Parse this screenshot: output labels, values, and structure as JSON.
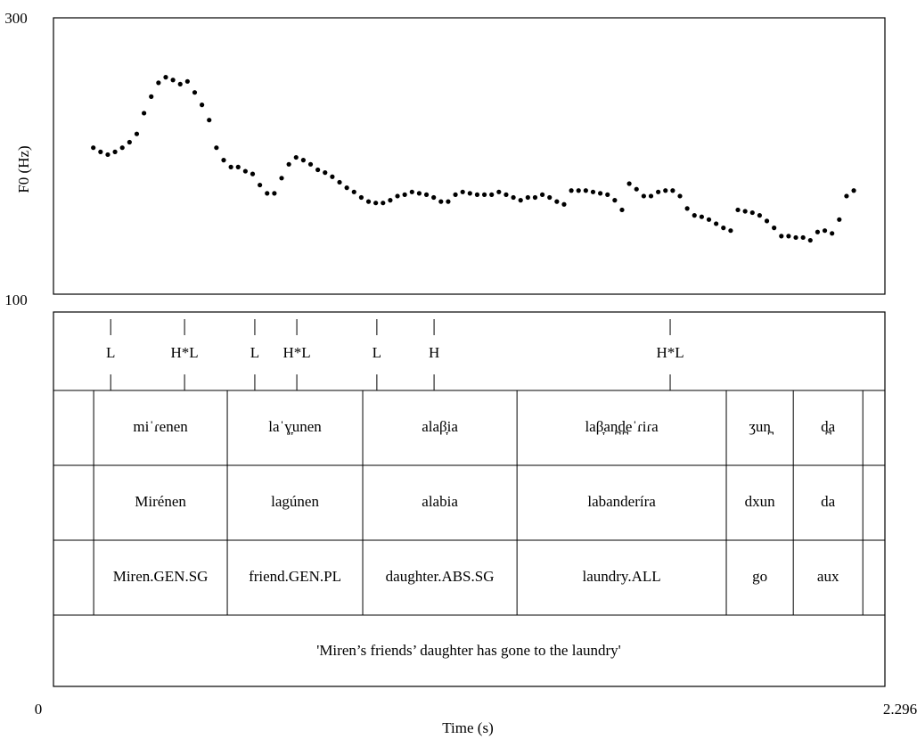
{
  "chart_data": {
    "type": "scatter",
    "xlabel": "Time (s)",
    "ylabel": "F0 (Hz)",
    "xlim": [
      0,
      2.296
    ],
    "ylim": [
      100,
      300
    ],
    "xticks": [
      0,
      2.296
    ],
    "yticks": [
      100,
      300
    ],
    "color": "#000000",
    "x": [
      0.11,
      0.13,
      0.15,
      0.17,
      0.19,
      0.21,
      0.23,
      0.25,
      0.27,
      0.29,
      0.31,
      0.33,
      0.35,
      0.37,
      0.39,
      0.41,
      0.43,
      0.45,
      0.47,
      0.49,
      0.51,
      0.53,
      0.55,
      0.57,
      0.59,
      0.61,
      0.63,
      0.65,
      0.67,
      0.69,
      0.71,
      0.73,
      0.75,
      0.77,
      0.79,
      0.81,
      0.83,
      0.85,
      0.87,
      0.89,
      0.91,
      0.93,
      0.95,
      0.97,
      0.99,
      1.01,
      1.03,
      1.05,
      1.07,
      1.09,
      1.11,
      1.13,
      1.15,
      1.17,
      1.19,
      1.21,
      1.23,
      1.25,
      1.27,
      1.29,
      1.31,
      1.33,
      1.35,
      1.37,
      1.39,
      1.41,
      1.43,
      1.45,
      1.47,
      1.49,
      1.51,
      1.53,
      1.55,
      1.57,
      1.59,
      1.61,
      1.63,
      1.65,
      1.67,
      1.69,
      1.71,
      1.73,
      1.75,
      1.77,
      1.79,
      1.81,
      1.83,
      1.85,
      1.87,
      1.89,
      1.91,
      1.93,
      1.95,
      1.97,
      1.99,
      2.01,
      2.03,
      2.05,
      2.07,
      2.09,
      2.11,
      2.13,
      2.15,
      2.17,
      2.19,
      2.21
    ],
    "values": [
      206,
      203,
      201,
      203,
      206,
      210,
      216,
      231,
      243,
      253,
      257,
      255,
      252,
      254,
      246,
      237,
      226,
      206,
      197,
      192,
      192,
      189,
      187,
      179,
      173,
      173,
      184,
      194,
      199,
      197,
      194,
      190,
      188,
      185,
      181,
      177,
      174,
      170,
      167,
      166,
      166,
      168,
      171,
      172,
      174,
      173,
      172,
      170,
      167,
      167,
      172,
      174,
      173,
      172,
      172,
      172,
      174,
      172,
      170,
      168,
      170,
      170,
      172,
      170,
      167,
      165,
      175,
      175,
      175,
      174,
      173,
      172,
      168,
      161,
      180,
      176,
      171,
      171,
      174,
      175,
      175,
      171,
      162,
      157,
      156,
      154,
      151,
      148,
      146,
      161,
      160,
      159,
      157,
      153,
      148,
      142,
      142,
      141,
      141,
      139,
      145,
      146,
      144,
      154,
      171,
      175
    ],
    "tone_tier": {
      "times": [
        0.158,
        0.362,
        0.556,
        0.672,
        0.893,
        1.051,
        1.703
      ],
      "labels": [
        "L",
        "H*L",
        "L",
        "H*L",
        "L",
        "H",
        "H*L"
      ]
    },
    "boundaries": [
      0.111,
      0.48,
      0.854,
      1.28,
      1.858,
      2.043,
      2.235
    ],
    "interval_tiers": [
      {
        "labels": [
          "miˈɾenen",
          "laˈɣ̞unen",
          "alaβ̞ia",
          "laβ̞an̪d̪eˈɾiɾa",
          "ʒun̪",
          "d̪a"
        ]
      },
      {
        "labels": [
          "Mirénen",
          "lagúnen",
          "alabia",
          "labanderíra",
          "dxun",
          "da"
        ]
      },
      {
        "labels": [
          "Miren.GEN.SG",
          "friend.GEN.PL",
          "daughter.ABS.SG",
          "laundry.ALL",
          "go",
          "aux"
        ]
      }
    ],
    "translation": "'Miren’s friends’ daughter has gone to the laundry'"
  }
}
